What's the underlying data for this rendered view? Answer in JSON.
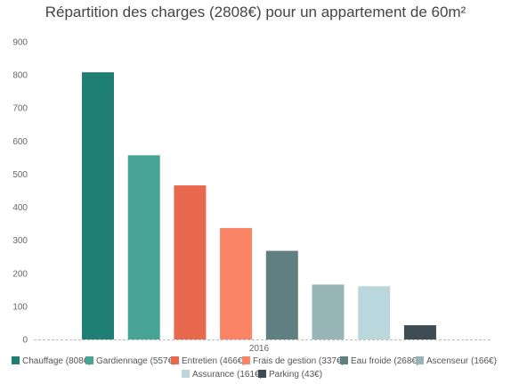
{
  "chart_data": {
    "type": "bar",
    "title": "Répartition des charges (2808€) pour un appartement de 60m²",
    "categories": [
      "2016"
    ],
    "ylim": [
      0,
      900
    ],
    "yticks": [
      0,
      100,
      200,
      300,
      400,
      500,
      600,
      700,
      800,
      900
    ],
    "grid": false,
    "legend_position": "bottom",
    "series": [
      {
        "name": "Chauffage (808€)",
        "values": [
          808
        ],
        "color": "#1f7f74"
      },
      {
        "name": "Gardiennage (557€)",
        "values": [
          557
        ],
        "color": "#48a397"
      },
      {
        "name": "Entretien (466€)",
        "values": [
          466
        ],
        "color": "#e8694d"
      },
      {
        "name": "Frais de gestion (337€)",
        "values": [
          337
        ],
        "color": "#fb8467"
      },
      {
        "name": "Eau froide (268€)",
        "values": [
          268
        ],
        "color": "#5f7f83"
      },
      {
        "name": "Ascenseur (166€)",
        "values": [
          166
        ],
        "color": "#97b4b7"
      },
      {
        "name": "Assurance (161€)",
        "values": [
          161
        ],
        "color": "#b9d7dc"
      },
      {
        "name": "Parking (43€)",
        "values": [
          43
        ],
        "color": "#3d4b52"
      }
    ]
  }
}
